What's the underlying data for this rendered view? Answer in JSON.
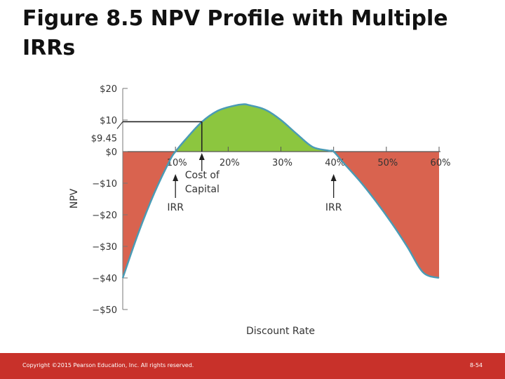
{
  "slide": {
    "title": "Figure 8.5  NPV Profile with Multiple IRRs",
    "footer_copyright": "Copyright ©2015 Pearson Education, Inc. All rights reserved.",
    "page_number": "8-54"
  },
  "chart_data": {
    "type": "area",
    "title": "",
    "xlabel": "Discount Rate",
    "ylabel": "NPV",
    "xlim": [
      0,
      60
    ],
    "ylim": [
      -50,
      20
    ],
    "x_ticks": [
      10,
      20,
      30,
      40,
      50,
      60
    ],
    "x_tick_labels": [
      "10%",
      "20%",
      "30%",
      "40%",
      "50%",
      "60%"
    ],
    "y_ticks": [
      20,
      10,
      0,
      -10,
      -20,
      -30,
      -40,
      -50
    ],
    "y_tick_labels": [
      "$20",
      "$10",
      "$0",
      "−$10",
      "−$20",
      "−$30",
      "−$40",
      "−$50"
    ],
    "series": [
      {
        "x": [
          0,
          3,
          6,
          9,
          10,
          12,
          15,
          18,
          21,
          23,
          24,
          27,
          30,
          33,
          36,
          39,
          40,
          42,
          45,
          48,
          51,
          54,
          57,
          60
        ],
        "values": [
          -40,
          -25.6,
          -13.1,
          -2.6,
          0,
          4.0,
          9.4,
          12.9,
          14.5,
          15.0,
          14.7,
          13.3,
          10.0,
          5.6,
          1.5,
          0.3,
          0,
          -3.8,
          -9.4,
          -15.7,
          -22.6,
          -30.2,
          -38.3,
          -40
        ]
      }
    ],
    "positive_fill": "#8cc63f",
    "negative_fill": "#d9634f",
    "curve_color": "#4a9bb5",
    "highlight": {
      "value_label": "$9.45",
      "x": 15,
      "y": 9.45
    },
    "annotations": [
      {
        "text_lines": [
          "Cost of",
          "Capital"
        ],
        "x": 15,
        "arrow": true
      },
      {
        "text_lines": [
          "IRR"
        ],
        "x": 10,
        "arrow": true
      },
      {
        "text_lines": [
          "IRR"
        ],
        "x": 40,
        "arrow": true
      }
    ]
  }
}
